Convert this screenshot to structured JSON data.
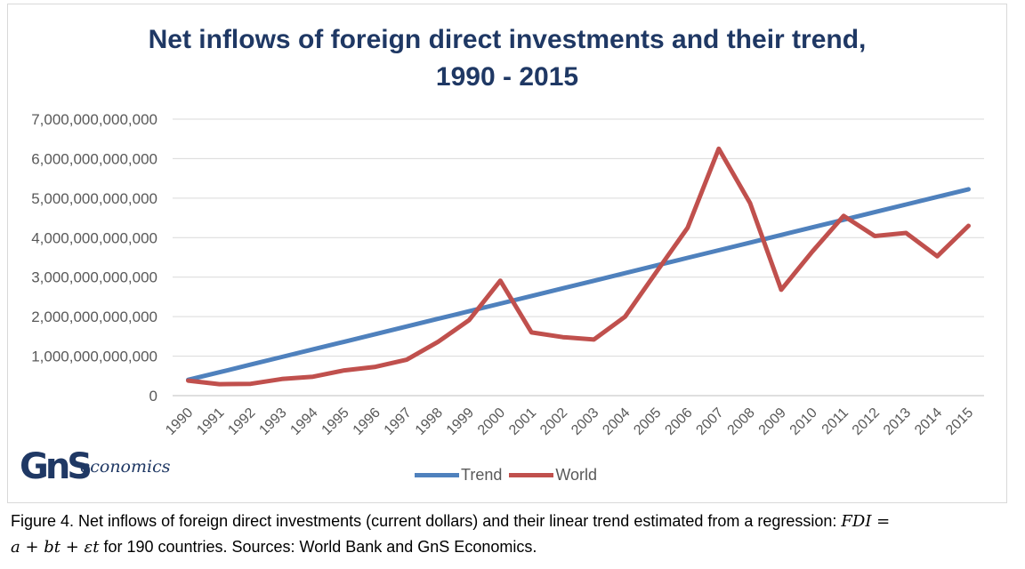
{
  "chart_data": {
    "type": "line",
    "title_line1": "Net inflows of foreign direct investments and their trend,",
    "title_line2": "1990 - 2015",
    "xlabel": "",
    "ylabel": "",
    "ylim": [
      0,
      7000000000000
    ],
    "yticks": [
      "0",
      "1,000,000,000,000",
      "2,000,000,000,000",
      "3,000,000,000,000",
      "4,000,000,000,000",
      "5,000,000,000,000",
      "6,000,000,000,000",
      "7,000,000,000,000"
    ],
    "grid": true,
    "legend_position": "bottom",
    "categories": [
      "1990",
      "1991",
      "1992",
      "1993",
      "1994",
      "1995",
      "1996",
      "1997",
      "1998",
      "1999",
      "2000",
      "2001",
      "2002",
      "2003",
      "2004",
      "2005",
      "2006",
      "2007",
      "2008",
      "2009",
      "2010",
      "2011",
      "2012",
      "2013",
      "2014",
      "2015"
    ],
    "series": [
      {
        "name": "Trend",
        "color": "#4f81bd",
        "values": [
          400000000000,
          593000000000,
          786000000000,
          979000000000,
          1172000000000,
          1365000000000,
          1558000000000,
          1751000000000,
          1944000000000,
          2137000000000,
          2330000000000,
          2523000000000,
          2716000000000,
          2909000000000,
          3102000000000,
          3295000000000,
          3488000000000,
          3681000000000,
          3874000000000,
          4067000000000,
          4260000000000,
          4453000000000,
          4646000000000,
          4839000000000,
          5032000000000,
          5225000000000
        ]
      },
      {
        "name": "World",
        "color": "#c0504d",
        "values": [
          380000000000,
          290000000000,
          300000000000,
          420000000000,
          480000000000,
          640000000000,
          730000000000,
          910000000000,
          1360000000000,
          1910000000000,
          2910000000000,
          1600000000000,
          1480000000000,
          1420000000000,
          2000000000000,
          3130000000000,
          4250000000000,
          6250000000000,
          4880000000000,
          2680000000000,
          3650000000000,
          4550000000000,
          4040000000000,
          4120000000000,
          3530000000000,
          4300000000000
        ]
      }
    ]
  },
  "logo": {
    "mark": "GnS",
    "wordmark": "economics"
  },
  "caption": {
    "text_before": "Figure 4. Net inflows of foreign direct investments (current dollars) and their linear trend estimated from a regression: ",
    "formula_lhs": "FDI =",
    "formula_rhs": "a + bt + εt",
    "text_after": " for 190 countries. Sources: World Bank and GnS Economics."
  }
}
